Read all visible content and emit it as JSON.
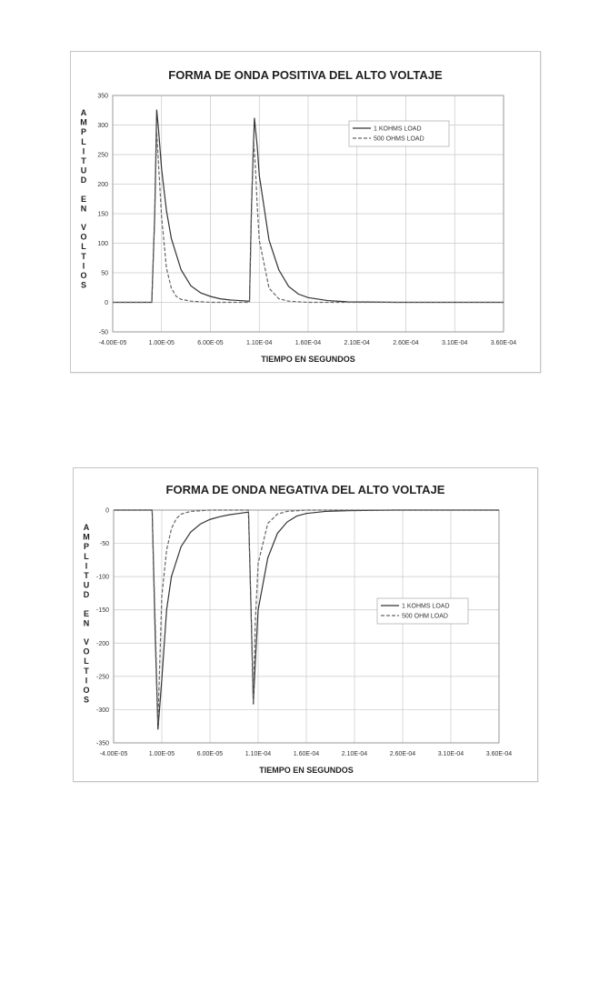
{
  "chart_data": [
    {
      "id": "positive",
      "type": "line",
      "title": "FORMA DE ONDA POSITIVA DEL ALTO VOLTAJE",
      "xlabel": "TIEMPO EN SEGUNDOS",
      "ylabel": "AMPLITUD EN VOLTIOS",
      "ylabel_words": [
        "AMPLITUD",
        "EN",
        "VOLTIOS"
      ],
      "xlim": [
        -4e-05,
        0.00036
      ],
      "ylim": [
        -50,
        350
      ],
      "x_ticks": [
        -4e-05,
        1e-05,
        6e-05,
        0.00011,
        0.00016,
        0.00021,
        0.00026,
        0.00031,
        0.00036
      ],
      "x_tick_labels": [
        "-4.00E-05",
        "1.00E-05",
        "6.00E-05",
        "1.10E-04",
        "1.60E-04",
        "2.10E-04",
        "2.60E-04",
        "3.10E-04",
        "3.60E-04"
      ],
      "y_ticks": [
        -50,
        0,
        50,
        100,
        150,
        200,
        250,
        300,
        350
      ],
      "y_tick_labels": [
        "-50",
        "0",
        "50",
        "100",
        "150",
        "200",
        "250",
        "300",
        "350"
      ],
      "grid": true,
      "legend_position": "top-right",
      "series": [
        {
          "name": "1 KOHMS LOAD",
          "style": "solid",
          "color": "#333333",
          "x": [
            -4e-05,
            0,
            3e-06,
            5e-06,
            7e-06,
            1e-05,
            1.5e-05,
            2e-05,
            3e-05,
            4e-05,
            5e-05,
            6e-05,
            7e-05,
            8e-05,
            9e-05,
            0.0001,
            0.000102,
            0.000105,
            0.000108,
            0.00011,
            0.00012,
            0.00013,
            0.00014,
            0.00015,
            0.00016,
            0.00018,
            0.0002,
            0.00025,
            0.0003,
            0.00036
          ],
          "y": [
            0,
            0,
            150,
            326,
            290,
            226,
            155,
            108,
            55,
            28,
            16,
            10,
            6,
            4,
            3,
            2,
            160,
            312,
            262,
            215,
            105,
            55,
            27,
            14,
            8,
            3,
            1,
            0,
            0,
            0
          ]
        },
        {
          "name": "500 OHMS LOAD",
          "style": "dashed",
          "color": "#666666",
          "x": [
            -4e-05,
            0,
            3e-06,
            5e-06,
            7e-06,
            1e-05,
            1.5e-05,
            2e-05,
            2.5e-05,
            3e-05,
            4e-05,
            5e-05,
            6e-05,
            8e-05,
            0.0001,
            0.000102,
            0.000104,
            0.000106,
            0.000108,
            0.00011,
            0.00012,
            0.00013,
            0.00014,
            0.00016,
            0.0002,
            0.00036
          ],
          "y": [
            0,
            0,
            140,
            290,
            230,
            145,
            58,
            24,
            10,
            5,
            2,
            1,
            0,
            0,
            0,
            150,
            278,
            230,
            160,
            105,
            24,
            6,
            2,
            0,
            0,
            0
          ]
        }
      ]
    },
    {
      "id": "negative",
      "type": "line",
      "title": "FORMA DE ONDA NEGATIVA DEL ALTO VOLTAJE",
      "xlabel": "TIEMPO EN SEGUNDOS",
      "ylabel": "AMPLITUD EN VOLTIOS",
      "ylabel_words": [
        "AMPLITUD",
        "EN",
        "VOLTIOS"
      ],
      "xlim": [
        -4e-05,
        0.00036
      ],
      "ylim": [
        -350,
        0
      ],
      "x_ticks": [
        -4e-05,
        1e-05,
        6e-05,
        0.00011,
        0.00016,
        0.00021,
        0.00026,
        0.00031,
        0.00036
      ],
      "x_tick_labels": [
        "-4.00E-05",
        "1.00E-05",
        "6.00E-05",
        "1.10E-04",
        "1.60E-04",
        "2.10E-04",
        "2.60E-04",
        "3.10E-04",
        "3.60E-04"
      ],
      "y_ticks": [
        -350,
        -300,
        -250,
        -200,
        -150,
        -100,
        -50,
        0
      ],
      "y_tick_labels": [
        "-350",
        "-300",
        "-250",
        "-200",
        "-150",
        "-100",
        "-50",
        "0"
      ],
      "grid": true,
      "legend_position": "center-right",
      "series": [
        {
          "name": "1 KOHMS LOAD",
          "style": "solid",
          "color": "#333333",
          "x": [
            -4e-05,
            0,
            3e-06,
            6e-06,
            1e-05,
            1.5e-05,
            2e-05,
            3e-05,
            4e-05,
            5e-05,
            6e-05,
            7e-05,
            8e-05,
            9e-05,
            0.0001,
            0.000103,
            0.000105,
            0.000107,
            0.00011,
            0.00012,
            0.00013,
            0.00014,
            0.00015,
            0.00016,
            0.00018,
            0.0002,
            0.00025,
            0.00036
          ],
          "y": [
            0,
            0,
            -180,
            -330,
            -255,
            -150,
            -100,
            -55,
            -33,
            -21,
            -14,
            -10,
            -7,
            -5,
            -3,
            -170,
            -292,
            -230,
            -150,
            -72,
            -35,
            -18,
            -9,
            -5,
            -2,
            -1,
            0,
            0
          ]
        },
        {
          "name": "500 OHM LOAD",
          "style": "dashed",
          "color": "#666666",
          "x": [
            -4e-05,
            0,
            3e-06,
            6e-06,
            1e-05,
            1.5e-05,
            2e-05,
            2.5e-05,
            3e-05,
            4e-05,
            5e-05,
            6e-05,
            0.0001,
            0.000103,
            0.000105,
            0.000107,
            0.00011,
            0.00012,
            0.00013,
            0.00014,
            0.00016,
            0.0002,
            0.00036
          ],
          "y": [
            0,
            0,
            -160,
            -320,
            -130,
            -60,
            -28,
            -13,
            -6,
            -2,
            -1,
            0,
            0,
            -170,
            -290,
            -170,
            -80,
            -20,
            -6,
            -2,
            0,
            0,
            0
          ]
        }
      ]
    }
  ]
}
